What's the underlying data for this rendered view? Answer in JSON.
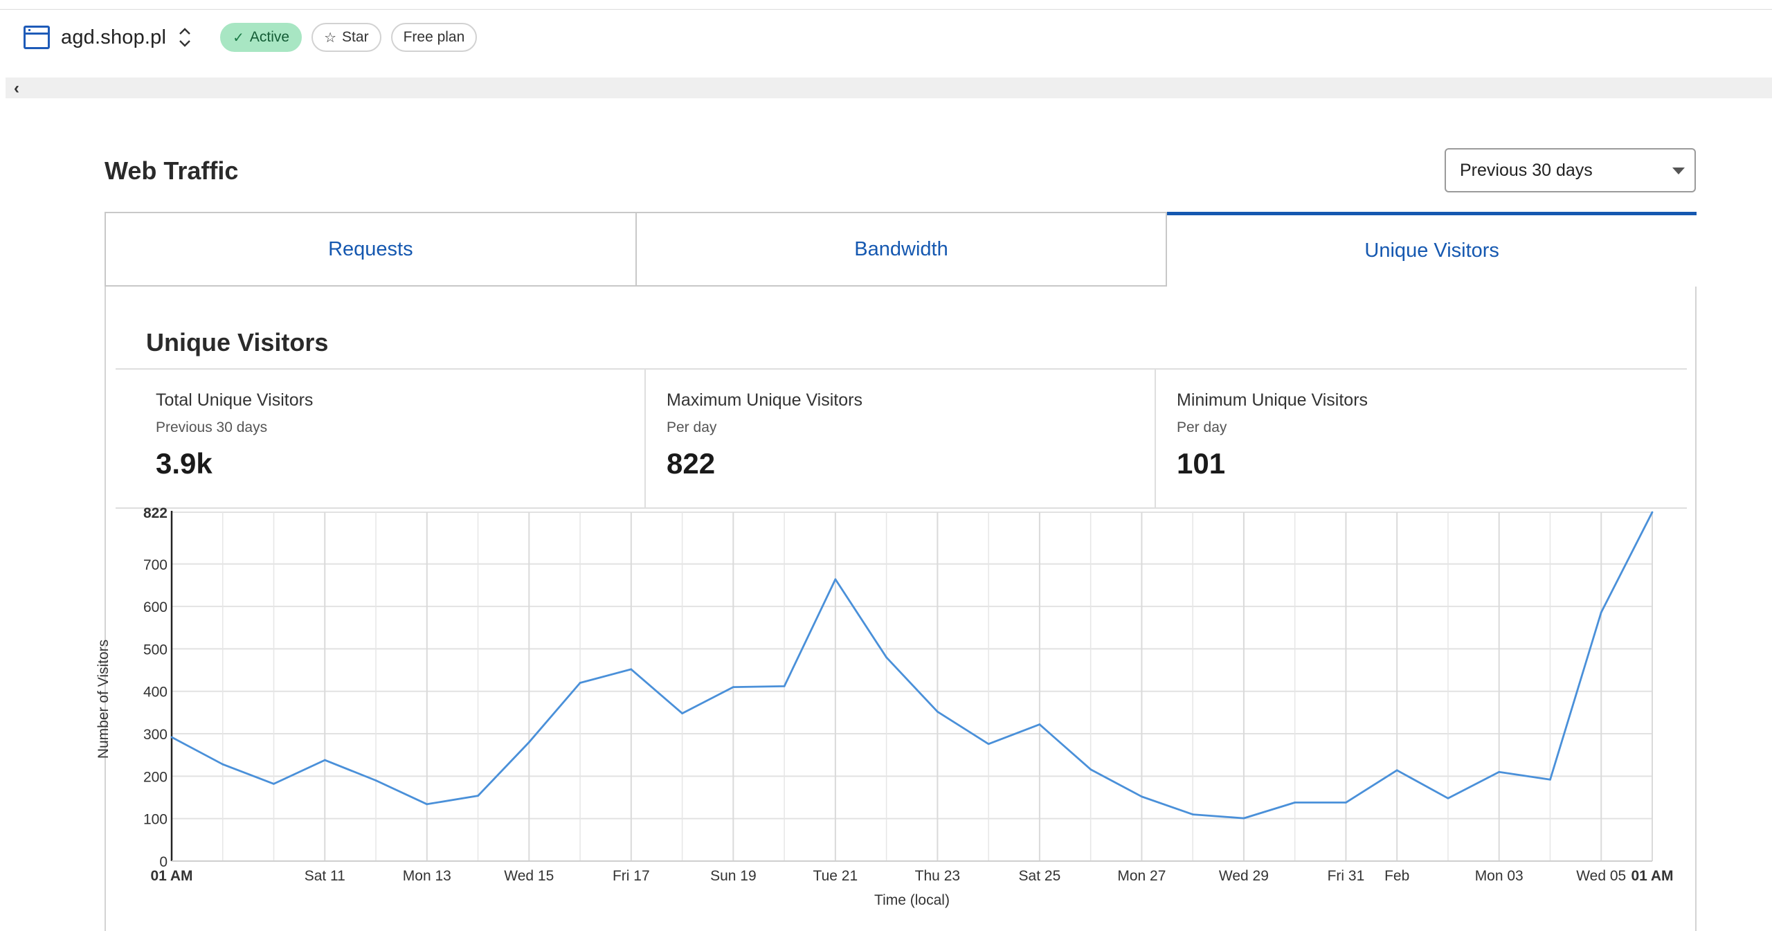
{
  "zone": {
    "name": "agd.shop.pl",
    "status_label": "Active",
    "star_label": "Star",
    "plan_label": "Free plan"
  },
  "page": {
    "section_title": "Web Traffic",
    "range_selected": "Previous 30 days"
  },
  "tabs": [
    {
      "label": "Requests",
      "selected": false
    },
    {
      "label": "Bandwidth",
      "selected": false
    },
    {
      "label": "Unique Visitors",
      "selected": true
    }
  ],
  "unique_visitors": {
    "title": "Unique Visitors",
    "stats": [
      {
        "label": "Total Unique Visitors",
        "sub": "Previous 30 days",
        "value": "3.9k"
      },
      {
        "label": "Maximum Unique Visitors",
        "sub": "Per day",
        "value": "822"
      },
      {
        "label": "Minimum Unique Visitors",
        "sub": "Per day",
        "value": "101"
      }
    ]
  },
  "colors": {
    "accent": "#1558b0",
    "line": "#4a90d9",
    "active_bg": "#a8e6c3"
  },
  "chart_data": {
    "type": "line",
    "xlabel": "Time (local)",
    "ylabel": "Number of Visitors",
    "ylim": [
      0,
      822
    ],
    "yticks": [
      0,
      100,
      200,
      300,
      400,
      500,
      600,
      700,
      822
    ],
    "grid": true,
    "x_start": "Jan 8, 01 AM",
    "x_end": "Feb 6, 01 AM",
    "xticks": [
      {
        "label": "01 AM",
        "day": 0,
        "bold": true
      },
      {
        "label": "Sat 11",
        "day": 3,
        "bold": false
      },
      {
        "label": "Mon 13",
        "day": 5,
        "bold": false
      },
      {
        "label": "Wed 15",
        "day": 7,
        "bold": false
      },
      {
        "label": "Fri 17",
        "day": 9,
        "bold": false
      },
      {
        "label": "Sun 19",
        "day": 11,
        "bold": false
      },
      {
        "label": "Tue 21",
        "day": 13,
        "bold": false
      },
      {
        "label": "Thu 23",
        "day": 15,
        "bold": false
      },
      {
        "label": "Sat 25",
        "day": 17,
        "bold": false
      },
      {
        "label": "Mon 27",
        "day": 19,
        "bold": false
      },
      {
        "label": "Wed 29",
        "day": 21,
        "bold": false
      },
      {
        "label": "Fri 31",
        "day": 23,
        "bold": false
      },
      {
        "label": "Feb",
        "day": 24,
        "bold": false
      },
      {
        "label": "Mon 03",
        "day": 26,
        "bold": false
      },
      {
        "label": "Wed 05",
        "day": 28,
        "bold": false
      },
      {
        "label": "01 AM",
        "day": 29,
        "bold": true
      }
    ],
    "series": [
      {
        "values": [
          292,
          228,
          182,
          238,
          190,
          134,
          154,
          280,
          420,
          452,
          348,
          410,
          412,
          664,
          480,
          352,
          276,
          322,
          216,
          152,
          110,
          101,
          138,
          138,
          214,
          148,
          210,
          192,
          586,
          822
        ]
      }
    ]
  }
}
